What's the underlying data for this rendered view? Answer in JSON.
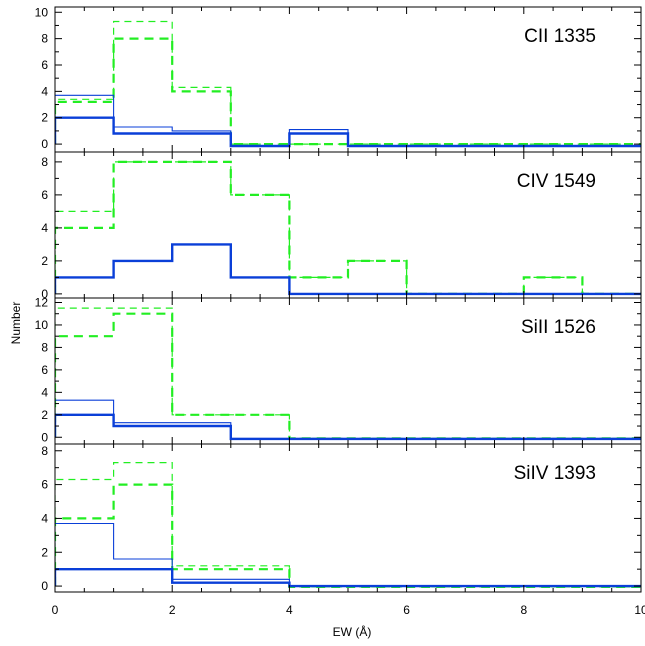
{
  "figure": {
    "xlabel": "EW (Å)",
    "ylabel": "Number",
    "xlim": [
      0,
      10
    ],
    "x_ticks": [
      0,
      2,
      4,
      6,
      8,
      10
    ],
    "colors": {
      "green": "#22ee22",
      "blue": "#0a3fd8",
      "axes": "#000000"
    }
  },
  "chart_data": [
    {
      "type": "step-histogram",
      "title": "CII 1335",
      "ylim": [
        -0.6,
        10.4
      ],
      "y_ticks": [
        0,
        2,
        4,
        6,
        8,
        10
      ],
      "bin_edges": [
        0,
        1,
        2,
        3,
        4,
        5,
        6,
        7,
        8,
        9,
        10
      ],
      "series": [
        {
          "style": "green-dashed-thick",
          "values": [
            3.2,
            8.0,
            4.0,
            0,
            0,
            0,
            0,
            0,
            0,
            0
          ]
        },
        {
          "style": "green-dashed-thin",
          "values": [
            3.4,
            9.3,
            4.3,
            0,
            0,
            0,
            0,
            0,
            0,
            0
          ]
        },
        {
          "style": "blue-solid-thick",
          "values": [
            2.0,
            0.8,
            0.8,
            -0.15,
            0.8,
            -0.15,
            -0.15,
            -0.15,
            -0.15,
            -0.15
          ]
        },
        {
          "style": "blue-solid-thin",
          "values": [
            3.7,
            1.3,
            1.0,
            -0.1,
            1.1,
            -0.1,
            -0.1,
            -0.1,
            -0.1,
            -0.1
          ]
        }
      ]
    },
    {
      "type": "step-histogram",
      "title": "CIV 1549",
      "ylim": [
        -0.25,
        8.6
      ],
      "y_ticks": [
        0,
        2,
        4,
        6,
        8
      ],
      "bin_edges": [
        0,
        1,
        2,
        3,
        4,
        5,
        6,
        7,
        8,
        9,
        10
      ],
      "series": [
        {
          "style": "green-dashed-thick",
          "values": [
            4,
            8,
            8,
            6,
            1,
            2,
            0,
            0,
            1,
            0
          ]
        },
        {
          "style": "green-dashed-thin",
          "values": [
            5,
            8,
            8,
            6,
            1,
            2,
            0,
            0,
            1,
            0
          ]
        },
        {
          "style": "blue-solid-thick",
          "values": [
            1,
            2,
            3,
            1,
            0,
            0,
            0,
            0,
            0,
            0
          ]
        }
      ]
    },
    {
      "type": "step-histogram",
      "title": "SiII 1526",
      "ylim": [
        -0.6,
        12.4
      ],
      "y_ticks": [
        0,
        2,
        4,
        6,
        8,
        10,
        12
      ],
      "bin_edges": [
        0,
        1,
        2,
        3,
        4,
        5,
        6,
        7,
        8,
        9,
        10
      ],
      "series": [
        {
          "style": "green-dashed-thick",
          "values": [
            9,
            11,
            2,
            2,
            -0.1,
            -0.1,
            -0.1,
            -0.1,
            -0.1,
            -0.1
          ]
        },
        {
          "style": "green-dashed-thin",
          "values": [
            11.5,
            11.5,
            2,
            2,
            -0.1,
            -0.1,
            -0.1,
            -0.1,
            -0.1,
            -0.1
          ]
        },
        {
          "style": "blue-solid-thick",
          "values": [
            2,
            1,
            1,
            -0.15,
            -0.15,
            -0.15,
            -0.15,
            -0.15,
            -0.15,
            -0.15
          ]
        },
        {
          "style": "blue-solid-thin",
          "values": [
            3.3,
            1.3,
            1.3,
            -0.1,
            -0.1,
            -0.1,
            -0.1,
            -0.1,
            -0.1,
            -0.1
          ]
        }
      ]
    },
    {
      "type": "step-histogram",
      "title": "SiIV 1393",
      "ylim": [
        -0.35,
        8.4
      ],
      "y_ticks": [
        0,
        2,
        4,
        6,
        8
      ],
      "bin_edges": [
        0,
        1,
        2,
        3,
        4,
        5,
        6,
        7,
        8,
        9,
        10
      ],
      "series": [
        {
          "style": "green-dashed-thick",
          "values": [
            4,
            6,
            1,
            1,
            -0.05,
            -0.05,
            -0.05,
            -0.05,
            -0.05,
            -0.05
          ]
        },
        {
          "style": "green-dashed-thin",
          "values": [
            6.3,
            7.3,
            1.2,
            1.2,
            -0.05,
            -0.05,
            -0.05,
            -0.05,
            -0.05,
            -0.05
          ]
        },
        {
          "style": "blue-solid-thick",
          "values": [
            1,
            1,
            0.2,
            0.2,
            0,
            0,
            0,
            0,
            0,
            0
          ]
        },
        {
          "style": "blue-solid-thin",
          "values": [
            3.7,
            1.6,
            0.4,
            0.4,
            0,
            0,
            0,
            0,
            0,
            0
          ]
        }
      ]
    }
  ]
}
